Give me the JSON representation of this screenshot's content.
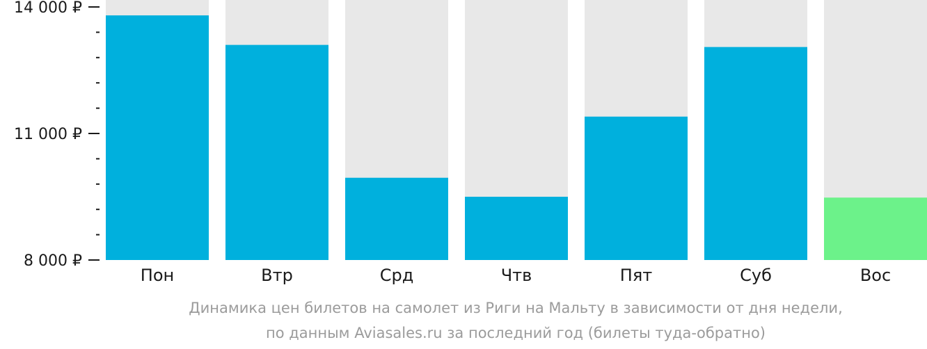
{
  "chart_data": {
    "type": "bar",
    "categories": [
      "Пон",
      "Втр",
      "Срд",
      "Чтв",
      "Пят",
      "Суб",
      "Вос"
    ],
    "values": [
      13800,
      13100,
      9950,
      9500,
      11400,
      13050,
      9480
    ],
    "ylim": [
      8000,
      14000
    ],
    "yticks": [
      {
        "value": 14000,
        "label": "14 000 ₽"
      },
      {
        "value": 11000,
        "label": "11 000 ₽"
      },
      {
        "value": 8000,
        "label": "8 000 ₽"
      }
    ],
    "minor_tick_step": 600,
    "colors": {
      "bar": "#00b0dd",
      "highlight": "#6cf28a",
      "background_bar": "#e8e8e8",
      "axis": "#1a1a1a"
    },
    "highlight_index": 6
  },
  "caption": {
    "line1": "Динамика цен билетов на самолет из Риги на Мальту в зависимости от дня недели,",
    "line2": "по данным Aviasales.ru за последний год (билеты туда-обратно)"
  }
}
